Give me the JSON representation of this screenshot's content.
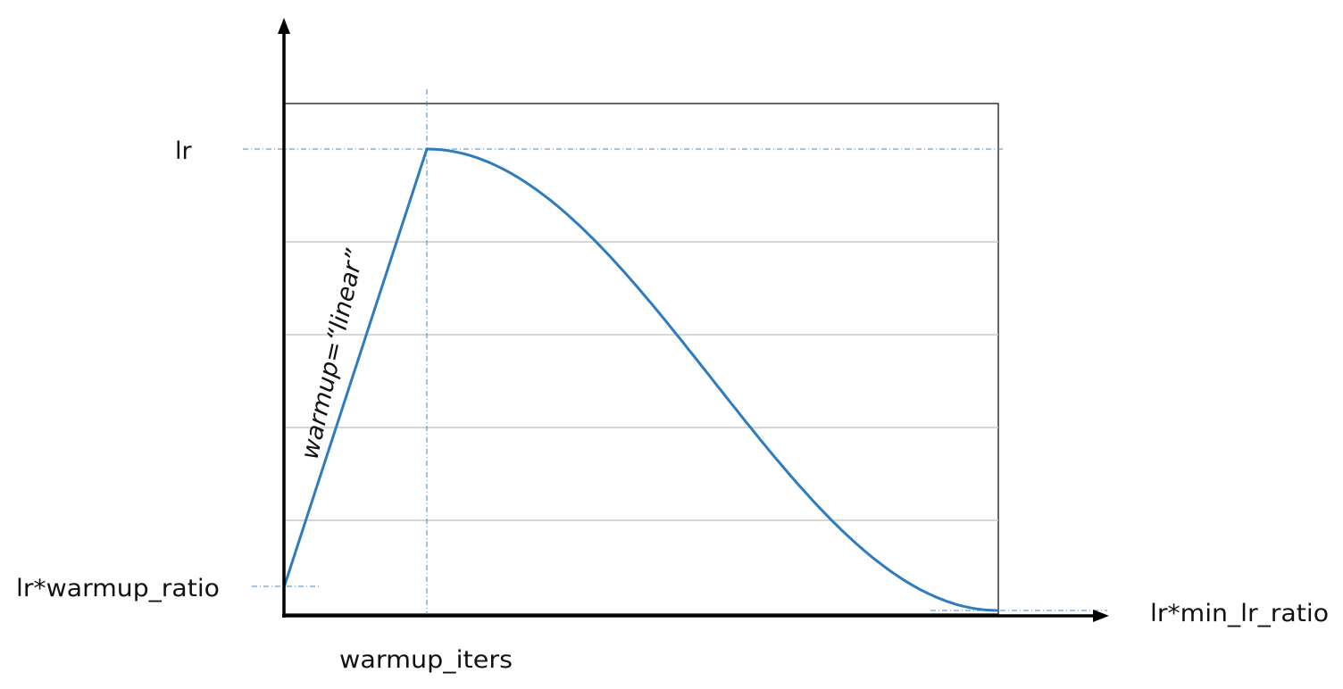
{
  "chart_data": {
    "type": "line",
    "title": "",
    "xlabel": "",
    "ylabel": "",
    "xlim": [
      0,
      1
    ],
    "ylim": [
      0,
      1
    ],
    "grid": true,
    "y_tick_labels": {
      "lr": "lr",
      "lr_warmup": "lr*warmup_ratio",
      "lr_min": "lr*min_lr_ratio"
    },
    "x_tick_labels": {
      "warmup_iters": "warmup_iters"
    },
    "annotations": {
      "warmup_line": "warmup=“linear”"
    },
    "colors": {
      "curve": "#2e7bbd",
      "guide": "#4a86c5",
      "grid": "#c8c8c8",
      "axis": "#000000",
      "frame": "#333333"
    },
    "schedule": {
      "warmup_fraction": 0.2,
      "lr": 1.0,
      "warmup_ratio": 0.05,
      "min_lr_ratio": 0.0,
      "decay": "cosine"
    }
  }
}
